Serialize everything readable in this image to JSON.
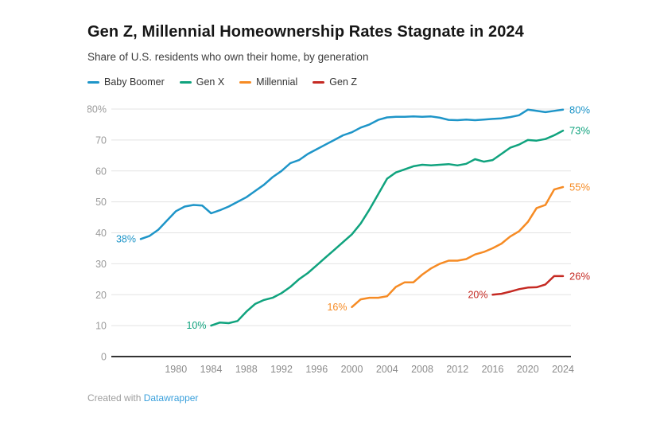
{
  "header": {
    "title": "Gen Z, Millennial Homeownership Rates Stagnate in 2024",
    "subtitle": "Share of U.S. residents who own their home, by generation"
  },
  "legend": {
    "items": [
      {
        "label": "Baby Boomer",
        "color": "#1e95c8"
      },
      {
        "label": "Gen X",
        "color": "#10a37e"
      },
      {
        "label": "Millennial",
        "color": "#f68b24"
      },
      {
        "label": "Gen Z",
        "color": "#c52a23"
      }
    ]
  },
  "chart_data": {
    "type": "line",
    "title": "Gen Z, Millennial Homeownership Rates Stagnate in 2024",
    "subtitle": "Share of U.S. residents who own their home, by generation",
    "xlabel": "",
    "ylabel": "",
    "xlim": [
      1972.5,
      2025
    ],
    "ylim": [
      0,
      80
    ],
    "grid": "horizontal",
    "legend_position": "top",
    "xticks": [
      1980,
      1984,
      1988,
      1992,
      1996,
      2000,
      2004,
      2008,
      2012,
      2016,
      2020,
      2024
    ],
    "yticks": [
      {
        "value": 0,
        "label": "0"
      },
      {
        "value": 10,
        "label": "10"
      },
      {
        "value": 20,
        "label": "20"
      },
      {
        "value": 30,
        "label": "30"
      },
      {
        "value": 40,
        "label": "40"
      },
      {
        "value": 50,
        "label": "50"
      },
      {
        "value": 60,
        "label": "60"
      },
      {
        "value": 70,
        "label": "70"
      },
      {
        "value": 80,
        "label": "80%"
      }
    ],
    "series": [
      {
        "name": "Baby Boomer",
        "color": "#1e95c8",
        "start_year": 1976,
        "start_label": "38%",
        "end_label": "80%",
        "values": [
          38,
          39,
          41,
          44,
          47,
          48.5,
          49,
          48.8,
          46.3,
          47.3,
          48.5,
          50,
          51.5,
          53.5,
          55.5,
          58,
          60,
          62.5,
          63.5,
          65.5,
          67,
          68.5,
          70,
          71.5,
          72.5,
          74,
          75,
          76.5,
          77.3,
          77.5,
          77.5,
          77.6,
          77.5,
          77.6,
          77.2,
          76.5,
          76.4,
          76.6,
          76.4,
          76.6,
          76.8,
          77,
          77.4,
          78,
          79.8,
          79.4,
          79,
          79.4,
          79.8
        ]
      },
      {
        "name": "Gen X",
        "color": "#10a37e",
        "start_year": 1984,
        "start_label": "10%",
        "end_label": "73%",
        "values": [
          10,
          11,
          10.8,
          11.5,
          14.5,
          17,
          18.3,
          19,
          20.5,
          22.5,
          25,
          27,
          29.5,
          32,
          34.5,
          37,
          39.5,
          43,
          47.5,
          52.5,
          57.5,
          59.5,
          60.5,
          61.5,
          62,
          61.8,
          62,
          62.2,
          61.8,
          62.3,
          63.8,
          63,
          63.5,
          65.5,
          67.5,
          68.5,
          70,
          69.8,
          70.3,
          71.5,
          73
        ]
      },
      {
        "name": "Millennial",
        "color": "#f68b24",
        "start_year": 2000,
        "start_label": "16%",
        "end_label": "55%",
        "values": [
          16,
          18.5,
          19,
          19,
          19.5,
          22.5,
          24,
          24,
          26.5,
          28.5,
          30,
          31,
          31,
          31.5,
          33,
          33.8,
          35,
          36.5,
          38.8,
          40.5,
          43.5,
          48,
          49,
          54,
          54.8
        ]
      },
      {
        "name": "Gen Z",
        "color": "#c52a23",
        "start_year": 2016,
        "start_label": "20%",
        "end_label": "26%",
        "values": [
          20,
          20.3,
          21,
          21.8,
          22.3,
          22.4,
          23.3,
          26,
          26
        ]
      }
    ]
  },
  "footer": {
    "created_with": "Created with",
    "brand": "Datawrapper"
  }
}
